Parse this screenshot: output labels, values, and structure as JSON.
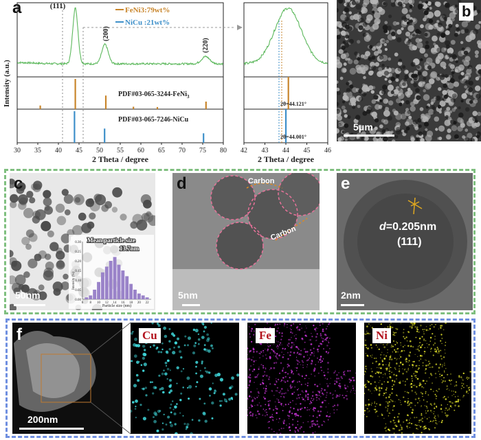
{
  "panels": {
    "a": "a",
    "b": "b",
    "c": "c",
    "d": "d",
    "e": "e",
    "f": "f"
  },
  "chart_data": [
    {
      "type": "line",
      "xlabel": "2 Theta / degree",
      "ylabel": "Intensity (a.u.)",
      "xlim": [
        30,
        80
      ],
      "xticks": [
        30,
        35,
        40,
        45,
        50,
        55,
        60,
        65,
        70,
        75,
        80
      ],
      "legend": [
        {
          "name": "FeNi3:79wt%",
          "color": "#c8852b"
        },
        {
          "name": "NiCu :21wt%",
          "color": "#3d8fc9"
        }
      ],
      "peak_labels": [
        "(111)",
        "(200)",
        "(220)"
      ],
      "pattern_color": "#5cb85c",
      "reference_1": {
        "label": "PDF#03-065-3244-FeNi",
        "label_subscript": "3",
        "color": "#c8852b",
        "sticks": [
          {
            "x": 35.6,
            "h": 0.12
          },
          {
            "x": 44.1,
            "h": 1.0
          },
          {
            "x": 51.5,
            "h": 0.45
          },
          {
            "x": 58.2,
            "h": 0.08
          },
          {
            "x": 64.0,
            "h": 0.07
          },
          {
            "x": 75.8,
            "h": 0.25
          }
        ]
      },
      "reference_2": {
        "label": "PDF#03-065-7246-NiCu",
        "color": "#3d8fc9",
        "sticks": [
          {
            "x": 43.9,
            "h": 1.0
          },
          {
            "x": 51.2,
            "h": 0.45
          },
          {
            "x": 75.2,
            "h": 0.3
          }
        ]
      }
    },
    {
      "type": "line",
      "xlabel": "2 Theta / degree",
      "xlim": [
        42,
        46
      ],
      "xticks": [
        42,
        43,
        44,
        45,
        46
      ],
      "annotation_1": "2θ=44.121°",
      "annotation_2": "2θ=44.001°"
    },
    {
      "type": "bar",
      "title": "Mean particle size",
      "subtitle": "13.7nm",
      "xlabel": "Particle size (nm)",
      "ylabel": "Intensity (%)",
      "categories": [
        "6",
        "8",
        "10",
        "12",
        "14",
        "16",
        "18",
        "20",
        "22"
      ],
      "x": [
        7,
        8,
        9,
        10,
        11,
        12,
        13,
        14,
        15,
        16,
        17,
        18,
        19,
        20,
        21,
        22
      ],
      "values": [
        0.01,
        0.02,
        0.05,
        0.09,
        0.14,
        0.17,
        0.2,
        0.22,
        0.18,
        0.15,
        0.12,
        0.08,
        0.05,
        0.03,
        0.02,
        0.01
      ],
      "yticks": [
        "0.00",
        "0.05",
        "0.10",
        "0.15",
        "0.20",
        "0.25",
        "0.30"
      ],
      "ylim": [
        0,
        0.3
      ]
    }
  ],
  "images": {
    "b_scale": "5μm",
    "c_scale": "50nm",
    "d_scale": "5nm",
    "d_label_1": "Carbon",
    "d_label_2": "Carbon",
    "e_scale": "2nm",
    "e_d_label": "d",
    "e_d_value": "=0.205nm",
    "e_plane": "(111)",
    "f_scale": "200nm",
    "map_cu": "Cu",
    "map_fe": "Fe",
    "map_ni": "Ni",
    "colors": {
      "cu": "#3fd6d9",
      "fe": "#c233d1",
      "ni": "#dcdc2a",
      "frame_green": "#7fbf7f",
      "frame_blue": "#6f8fe0"
    }
  }
}
